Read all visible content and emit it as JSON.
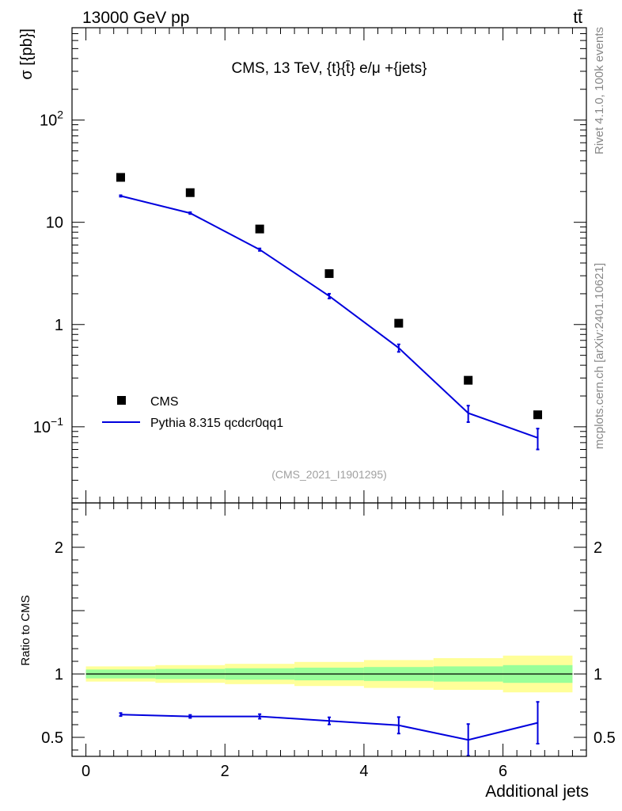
{
  "header": {
    "left": "13000 GeV pp",
    "right": "tt̄"
  },
  "side_labels": {
    "rivet": "Rivet 4.1.0,  100k events",
    "mcplots": "mcplots.cern.ch [arXiv:2401.10621]"
  },
  "reference": "(CMS_2021_I1901295)",
  "chart_data": [
    {
      "type": "scatter",
      "title": "CMS, 13 TeV, {t}{t̄} e/μ +{jets}",
      "ylabel": "σ [{pb}]",
      "xlabel": "",
      "yscale": "log",
      "ylim": [
        0.018,
        800
      ],
      "xlim": [
        -0.2,
        7.2
      ],
      "yticks": [
        {
          "value": 0.1,
          "base": "10",
          "exp": "−1"
        },
        {
          "value": 1,
          "label": "1"
        },
        {
          "value": 10,
          "label": "10"
        },
        {
          "value": 100,
          "base": "10",
          "exp": "2"
        }
      ],
      "legend": {
        "placement": "bottom-left",
        "entries": [
          "CMS",
          "Pythia 8.315 qcdcr0qq1"
        ]
      },
      "series": [
        {
          "name": "CMS",
          "kind": "markers",
          "color": "#000000",
          "x": [
            0.5,
            1.5,
            2.5,
            3.5,
            4.5,
            5.5,
            6.5
          ],
          "values": [
            27.5,
            19.5,
            8.6,
            3.15,
            1.03,
            0.285,
            0.131
          ]
        },
        {
          "name": "Pythia 8.315 qcdcr0qq1",
          "kind": "line",
          "color": "#0000dd",
          "x": [
            0.5,
            1.5,
            2.5,
            3.5,
            4.5,
            5.5,
            6.5
          ],
          "values": [
            18.1,
            12.3,
            5.4,
            1.9,
            0.59,
            0.136,
            0.078
          ],
          "err": [
            0.3,
            0.25,
            0.15,
            0.1,
            0.05,
            0.025,
            0.018
          ]
        }
      ]
    },
    {
      "type": "line",
      "title": "",
      "xlabel": "Additional jets",
      "ylabel": "Ratio to CMS",
      "ylim": [
        0.35,
        2.35
      ],
      "xlim": [
        -0.2,
        7.2
      ],
      "xticks": [
        0,
        2,
        4,
        6
      ],
      "yticks": [
        0.5,
        1,
        2
      ],
      "bands": {
        "bin_edges": [
          0,
          1,
          2,
          3,
          4,
          5,
          6,
          7
        ],
        "inner_halfwidth": [
          0.035,
          0.04,
          0.045,
          0.05,
          0.055,
          0.06,
          0.07
        ],
        "outer_halfwidth": [
          0.06,
          0.07,
          0.08,
          0.095,
          0.11,
          0.125,
          0.145
        ],
        "inner_color": "#99ff99",
        "outer_color": "#ffff99"
      },
      "series": [
        {
          "name": "Pythia 8.315 qcdcr0qq1",
          "color": "#0000dd",
          "x": [
            0.5,
            1.5,
            2.5,
            3.5,
            4.5,
            5.5,
            6.5
          ],
          "values": [
            0.68,
            0.665,
            0.665,
            0.63,
            0.595,
            0.48,
            0.615
          ],
          "err": [
            0.012,
            0.012,
            0.018,
            0.028,
            0.065,
            0.125,
            0.165
          ]
        }
      ]
    }
  ]
}
